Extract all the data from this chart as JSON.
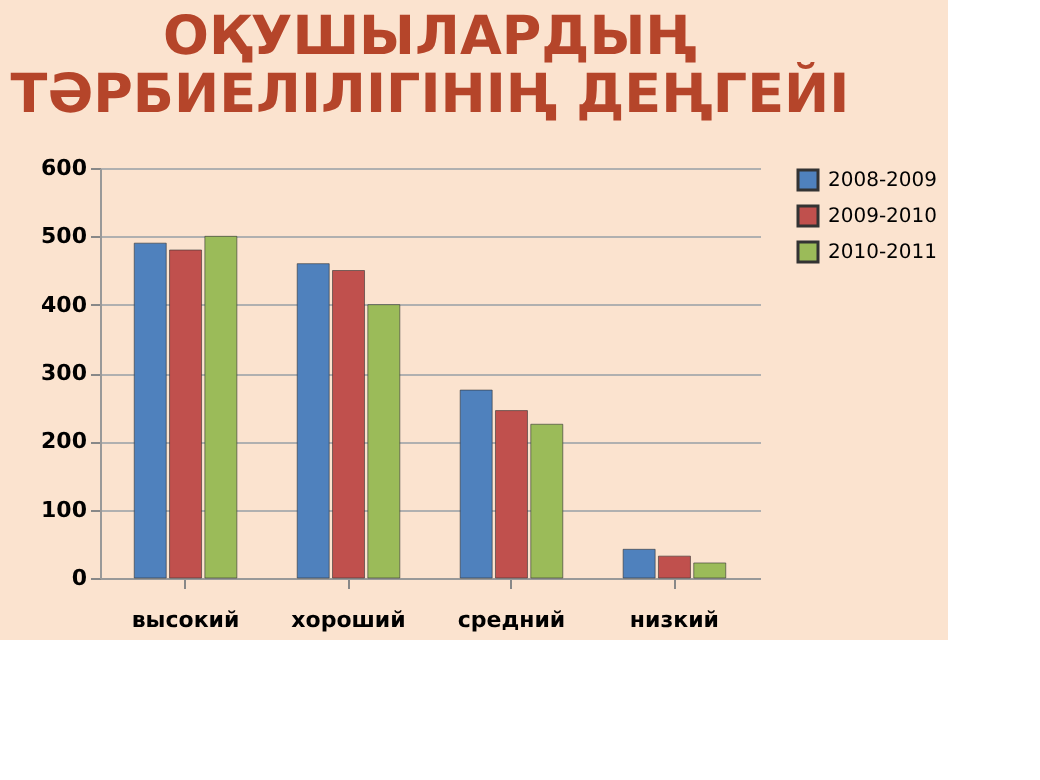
{
  "chart_data": {
    "type": "bar",
    "title": [
      "ОҚУШЫЛАРДЫҢ",
      "ТӘРБИЕЛІЛІГІНІҢ ДЕҢГЕЙІ"
    ],
    "categories": [
      "высокий",
      "хороший",
      "средний",
      "низкий"
    ],
    "series": [
      {
        "name": "2008-2009",
        "color": "#4f81bd",
        "values": [
          490,
          460,
          275,
          42
        ]
      },
      {
        "name": "2009-2010",
        "color": "#c0504d",
        "values": [
          480,
          450,
          245,
          32
        ]
      },
      {
        "name": "2010-2011",
        "color": "#9bbb59",
        "values": [
          500,
          400,
          225,
          22
        ]
      }
    ],
    "ylim": [
      0,
      600
    ],
    "yticks": [
      0,
      100,
      200,
      300,
      400,
      500,
      600
    ],
    "grid": "y",
    "legend": "right"
  }
}
